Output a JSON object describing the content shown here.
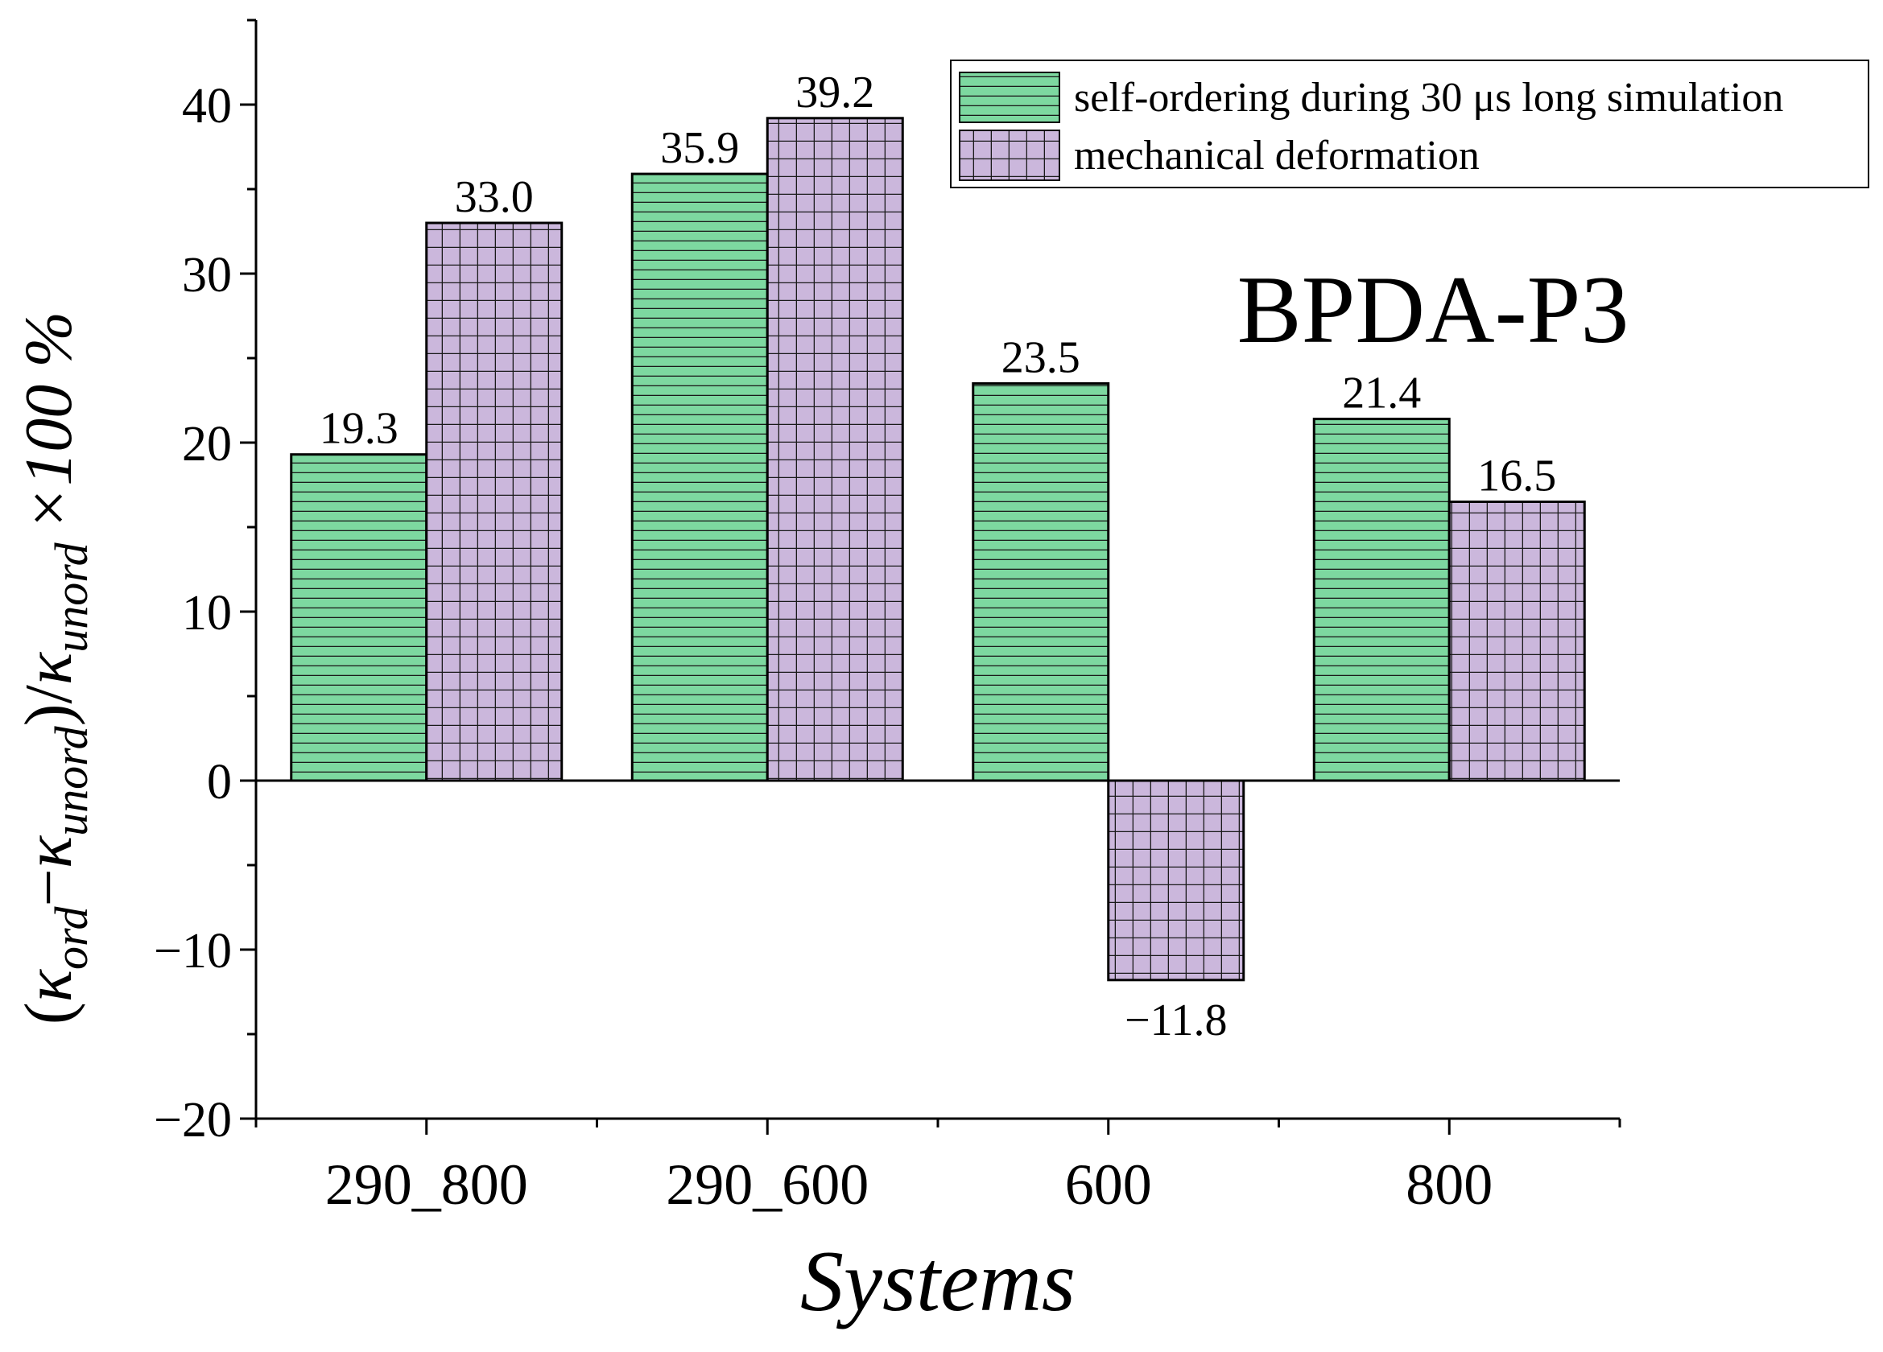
{
  "chart_data": {
    "type": "bar",
    "title": "BPDA-P3",
    "xlabel": "Systems",
    "ylabel": {
      "kappa": "κ",
      "ord": "ord",
      "unord": "unord",
      "open_paren": "(",
      "minus": "−",
      "slash_paren": ")/",
      "suffix": "×100 %"
    },
    "categories": [
      "290_800",
      "290_600",
      "600",
      "800"
    ],
    "series": [
      {
        "name": "self-ordering during 30 μs long simulation",
        "values": [
          19.3,
          35.9,
          23.5,
          21.4
        ],
        "labels": [
          "19.3",
          "35.9",
          "23.5",
          "21.4"
        ],
        "color": "#7dd8a0",
        "pattern": "horizontal-lines"
      },
      {
        "name": "mechanical deformation",
        "values": [
          33.0,
          39.2,
          -11.8,
          16.5
        ],
        "labels": [
          "33.0",
          "39.2",
          "−11.8",
          "16.5"
        ],
        "color": "#cbb7dc",
        "pattern": "grid"
      }
    ],
    "ylim": [
      -20,
      45
    ],
    "yticks": [
      -20,
      -10,
      0,
      10,
      20,
      30,
      40
    ],
    "ytick_labels": [
      "−20",
      "−10",
      "0",
      "10",
      "20",
      "30",
      "40"
    ],
    "legend_position": "top-right",
    "grid": false
  }
}
